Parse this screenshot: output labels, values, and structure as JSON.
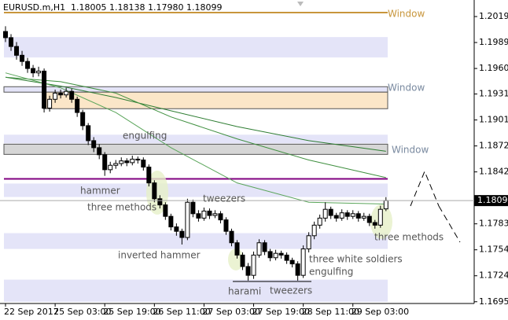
{
  "chart_data": {
    "type": "candlestick",
    "symbol": "EURUSD.m,H1",
    "ohlc_text": "1.18005 1.18138 1.17980 1.18099",
    "xlim": [
      -1,
      85
    ],
    "ylim": [
      1.1693,
      1.20378
    ],
    "yticks": [
      {
        "value": 1.2019,
        "label": "1.20190"
      },
      1.19895,
      {
        "value": 1.196,
        "label": "1.19600"
      },
      {
        "value": 1.1931,
        "label": "1.19310"
      },
      1.19015,
      {
        "value": 1.1872,
        "label": "1.18720"
      },
      1.18425,
      1.17835,
      {
        "value": 1.1754,
        "label": "1.17540"
      },
      1.17245,
      {
        "value": 1.1695,
        "label": "1.16950"
      }
    ],
    "xticks": [
      {
        "value": 0,
        "label": "22 Sep 2017"
      },
      {
        "value": 9,
        "label": "25 Sep 03:00"
      },
      {
        "value": 18,
        "label": "25 Sep 19:00"
      },
      {
        "value": 27,
        "label": "26 Sep 11:00"
      },
      {
        "value": 36,
        "label": "27 Sep 03:00"
      },
      {
        "value": 45,
        "label": "27 Sep 19:00"
      },
      {
        "value": 54,
        "label": "28 Sep 11:00"
      },
      {
        "value": 63,
        "label": "29 Sep 03:00"
      }
    ],
    "bull_color": "#ffffff",
    "bear_color": "#000000",
    "candles": [
      [
        1.2002,
        1.2008,
        1.199,
        1.1995
      ],
      [
        1.1995,
        1.1999,
        1.198,
        1.1985
      ],
      [
        1.1985,
        1.199,
        1.197,
        1.1975
      ],
      [
        1.1975,
        1.198,
        1.1963,
        1.1968
      ],
      [
        1.1968,
        1.1972,
        1.1955,
        1.196
      ],
      [
        1.196,
        1.1964,
        1.195,
        1.1955
      ],
      [
        1.1955,
        1.1962,
        1.1951,
        1.1957
      ],
      [
        1.1957,
        1.196,
        1.191,
        1.1915
      ],
      [
        1.1915,
        1.1929,
        1.1911,
        1.1925
      ],
      [
        1.1925,
        1.1936,
        1.1921,
        1.1932
      ],
      [
        1.1932,
        1.1936,
        1.1926,
        1.193
      ],
      [
        1.193,
        1.1938,
        1.1927,
        1.1934
      ],
      [
        1.1934,
        1.1937,
        1.1921,
        1.1925
      ],
      [
        1.1925,
        1.1928,
        1.1905,
        1.191
      ],
      [
        1.191,
        1.1913,
        1.189,
        1.1895
      ],
      [
        1.1895,
        1.1898,
        1.1873,
        1.1878
      ],
      [
        1.1878,
        1.1882,
        1.1865,
        1.187
      ],
      [
        1.187,
        1.1874,
        1.1857,
        1.1862
      ],
      [
        1.1862,
        1.1865,
        1.1838,
        1.1845
      ],
      [
        1.1845,
        1.1854,
        1.1841,
        1.185
      ],
      [
        1.185,
        1.1856,
        1.1846,
        1.1852
      ],
      [
        1.1852,
        1.1859,
        1.1849,
        1.1855
      ],
      [
        1.1855,
        1.1858,
        1.1849,
        1.1853
      ],
      [
        1.1853,
        1.1861,
        1.185,
        1.1857
      ],
      [
        1.1857,
        1.186,
        1.1852,
        1.1856
      ],
      [
        1.1856,
        1.1859,
        1.1844,
        1.1848
      ],
      [
        1.1848,
        1.1851,
        1.1826,
        1.183
      ],
      [
        1.183,
        1.1833,
        1.1808,
        1.1812
      ],
      [
        1.1812,
        1.1816,
        1.1801,
        1.1805
      ],
      [
        1.1805,
        1.1808,
        1.1788,
        1.1792
      ],
      [
        1.1792,
        1.1795,
        1.1776,
        1.178
      ],
      [
        1.178,
        1.1784,
        1.177,
        1.1775
      ],
      [
        1.1775,
        1.1778,
        1.176,
        1.1768
      ],
      [
        1.1768,
        1.1812,
        1.1765,
        1.1808
      ],
      [
        1.1808,
        1.1811,
        1.1791,
        1.1795
      ],
      [
        1.1795,
        1.1799,
        1.1786,
        1.179
      ],
      [
        1.179,
        1.1802,
        1.1787,
        1.1798
      ],
      [
        1.1798,
        1.1801,
        1.1789,
        1.1793
      ],
      [
        1.1793,
        1.1799,
        1.179,
        1.1795
      ],
      [
        1.1795,
        1.1798,
        1.1784,
        1.1788
      ],
      [
        1.1788,
        1.1791,
        1.1771,
        1.1775
      ],
      [
        1.1775,
        1.1778,
        1.1758,
        1.1762
      ],
      [
        1.1762,
        1.1765,
        1.1744,
        1.1748
      ],
      [
        1.1748,
        1.1751,
        1.1731,
        1.1735
      ],
      [
        1.1735,
        1.1739,
        1.1719,
        1.1725
      ],
      [
        1.1725,
        1.1752,
        1.1721,
        1.1748
      ],
      [
        1.1748,
        1.1766,
        1.1745,
        1.1762
      ],
      [
        1.1762,
        1.1765,
        1.1748,
        1.1752
      ],
      [
        1.1752,
        1.1755,
        1.1741,
        1.1745
      ],
      [
        1.1745,
        1.1754,
        1.1742,
        1.175
      ],
      [
        1.175,
        1.1753,
        1.1744,
        1.1748
      ],
      [
        1.1748,
        1.1751,
        1.1738,
        1.1742
      ],
      [
        1.1742,
        1.1745,
        1.1734,
        1.1738
      ],
      [
        1.1738,
        1.1741,
        1.1719,
        1.1725
      ],
      [
        1.1725,
        1.1759,
        1.1722,
        1.1755
      ],
      [
        1.1755,
        1.1774,
        1.1751,
        1.177
      ],
      [
        1.177,
        1.1786,
        1.1766,
        1.1782
      ],
      [
        1.1782,
        1.1794,
        1.1778,
        1.179
      ],
      [
        1.179,
        1.1808,
        1.1786,
        1.18
      ],
      [
        1.18,
        1.1803,
        1.1789,
        1.1793
      ],
      [
        1.1793,
        1.1796,
        1.1786,
        1.179
      ],
      [
        1.179,
        1.18,
        1.1787,
        1.1796
      ],
      [
        1.1796,
        1.1799,
        1.1788,
        1.1792
      ],
      [
        1.1792,
        1.1799,
        1.1789,
        1.1795
      ],
      [
        1.1795,
        1.1798,
        1.1786,
        1.179
      ],
      [
        1.179,
        1.1796,
        1.1787,
        1.1792
      ],
      [
        1.1792,
        1.1795,
        1.1781,
        1.1785
      ],
      [
        1.1785,
        1.1788,
        1.1778,
        1.1782
      ],
      [
        1.1782,
        1.1804,
        1.1779,
        1.18
      ],
      [
        1.18005,
        1.18138,
        1.1798,
        1.18099
      ]
    ],
    "moving_averages": [
      {
        "color": "#2e7d32",
        "x": [
          0,
          10,
          20,
          30,
          42,
          55,
          69
        ],
        "values": [
          1.195,
          1.194,
          1.1927,
          1.1912,
          1.1894,
          1.1878,
          1.1866
        ]
      },
      {
        "color": "#3f8f3f",
        "x": [
          0,
          10,
          20,
          30,
          42,
          55,
          69
        ],
        "values": [
          1.195,
          1.1945,
          1.1932,
          1.1905,
          1.188,
          1.1856,
          1.1836
        ]
      },
      {
        "color": "#5aa55a",
        "x": [
          0,
          10,
          20,
          30,
          42,
          55,
          69
        ],
        "values": [
          1.1955,
          1.1938,
          1.191,
          1.187,
          1.183,
          1.1808,
          1.1806
        ]
      }
    ],
    "bands": [
      {
        "range": [
          1.19725,
          1.19957
        ],
        "color": "#e4e4f8"
      },
      {
        "range": [
          1.19331,
          1.19393
        ],
        "color": "#e4e4f8",
        "border": "#555555"
      },
      {
        "range": [
          1.19143,
          1.19331
        ],
        "color": "#fbe6c8",
        "border": "#555555"
      },
      {
        "range": [
          1.18749,
          1.18848
        ],
        "color": "#e4e4f8"
      },
      {
        "range": [
          1.18624,
          1.1874
        ],
        "color": "#d6d6d6",
        "border": "#555555"
      },
      {
        "range": [
          1.1814,
          1.18293
        ],
        "color": "#e4e4f8"
      },
      {
        "range": [
          1.1755,
          1.17729
        ],
        "color": "#e4e4f8"
      },
      {
        "range": [
          1.1695,
          1.17201
        ],
        "color": "#e4e4f8"
      }
    ],
    "levels": [
      {
        "price": 1.20235,
        "color": "#c8963c"
      },
      {
        "price": 1.18346,
        "color": "#800080"
      }
    ],
    "annotations": [
      "Window",
      "Window",
      "Window",
      "engulfing",
      "hammer",
      "three methods",
      "tweezers",
      "inverted hammer",
      "harami",
      "tweezers",
      "three white soldiers",
      "engulfing",
      "three methods"
    ]
  }
}
